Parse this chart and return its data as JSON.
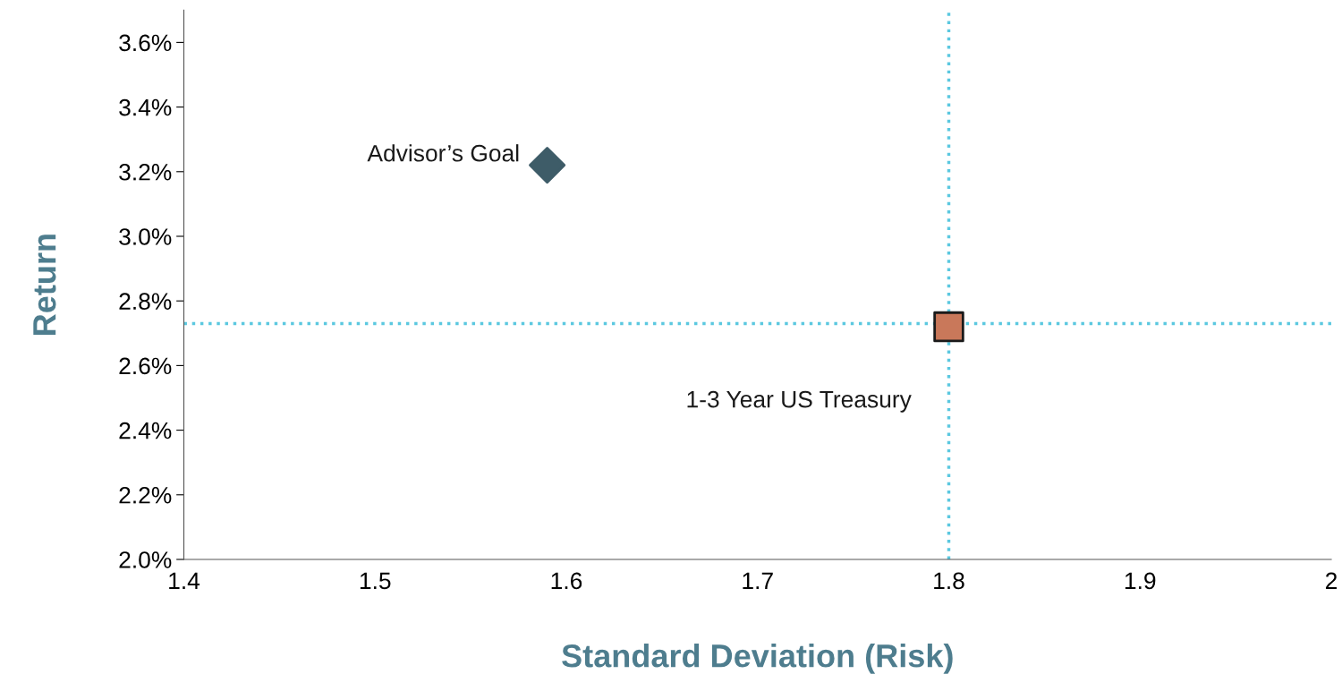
{
  "chart_data": {
    "type": "scatter",
    "xlabel": "Standard Deviation (Risk)",
    "ylabel": "Return",
    "xlim": [
      1.4,
      2.0
    ],
    "xticks": [
      1.4,
      1.5,
      1.6,
      1.7,
      1.8,
      1.9,
      {
        "value": 2.0,
        "label": "2"
      }
    ],
    "ylim": [
      2.0,
      3.7
    ],
    "yticks": [
      {
        "value": 2.0,
        "label": "2.0%"
      },
      {
        "value": 2.2,
        "label": "2.2%"
      },
      {
        "value": 2.4,
        "label": "2.4%"
      },
      {
        "value": 2.6,
        "label": "2.6%"
      },
      {
        "value": 2.8,
        "label": "2.8%"
      },
      {
        "value": 3.0,
        "label": "3.0%"
      },
      {
        "value": 3.2,
        "label": "3.2%"
      },
      {
        "value": 3.4,
        "label": "3.4%"
      },
      {
        "value": 3.6,
        "label": "3.6%"
      }
    ],
    "grid": false,
    "legend": false,
    "series": [
      {
        "name": "Advisor’s Goal",
        "x": [
          1.59
        ],
        "values": [
          3.22
        ],
        "color": "#3e5c68",
        "marker": "diamond"
      },
      {
        "name": "1-3 Year US Treasury",
        "x": [
          1.8
        ],
        "values": [
          2.72
        ],
        "color": "#c9785a",
        "marker": "square"
      }
    ],
    "ref_lines": [
      {
        "axis": "x",
        "value": 1.8,
        "color": "#5bc8e0",
        "line_style": "dotted"
      },
      {
        "axis": "y",
        "value": 2.73,
        "color": "#5bc8e0",
        "line_style": "dotted"
      }
    ]
  }
}
